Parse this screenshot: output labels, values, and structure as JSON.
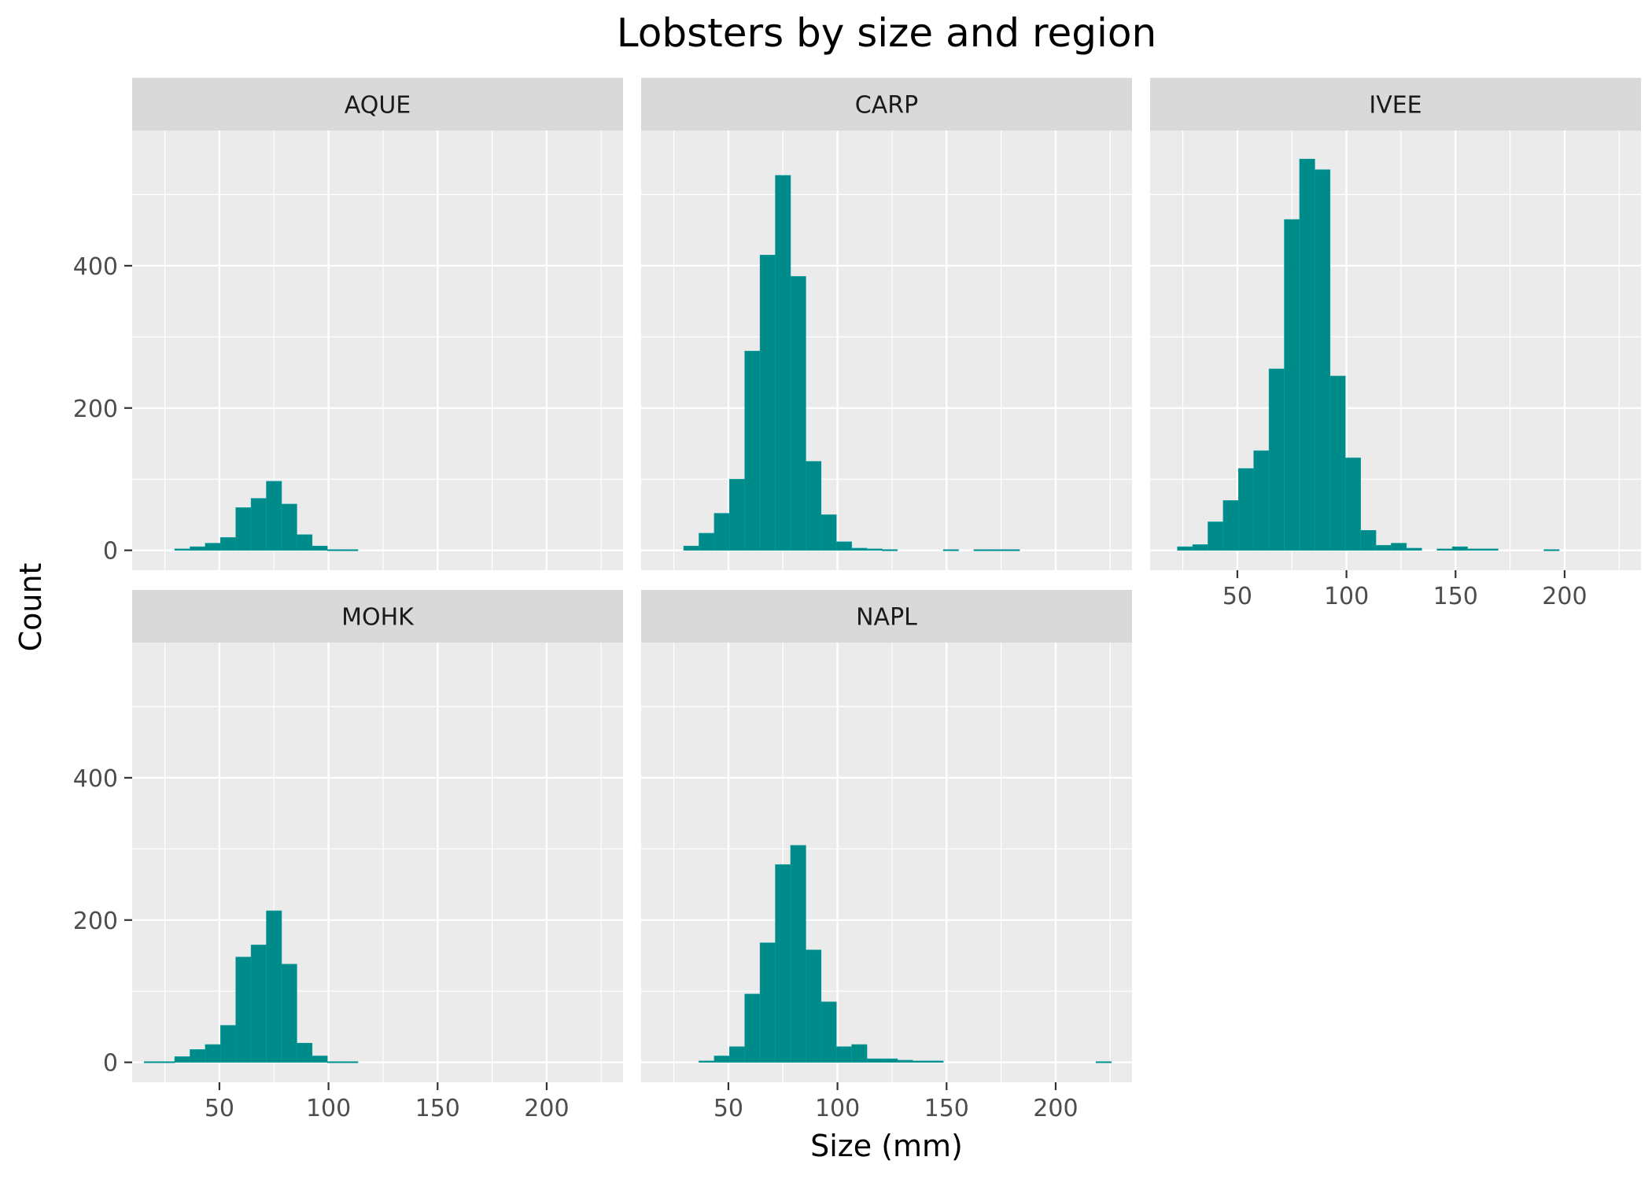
{
  "chart_data": {
    "type": "bar",
    "subtype": "histogram-faceted",
    "title": "Lobsters by size and region",
    "xlabel": "Size (mm)",
    "ylabel": "Count",
    "xlim": [
      10,
      235
    ],
    "ylim": [
      -28,
      590
    ],
    "x_ticks": [
      50,
      100,
      150,
      200
    ],
    "y_ticks": [
      0,
      200,
      400
    ],
    "bin_width": 7,
    "colors": {
      "bar": "#008b8b",
      "panel": "#ebebeb",
      "strip": "#d9d9d9",
      "grid": "#ffffff"
    },
    "facets": [
      {
        "name": "AQUE",
        "bins": [
          [
            33,
            2
          ],
          [
            40,
            5
          ],
          [
            47,
            10
          ],
          [
            54,
            18
          ],
          [
            61,
            60
          ],
          [
            68,
            73
          ],
          [
            75,
            97
          ],
          [
            82,
            65
          ],
          [
            89,
            22
          ],
          [
            96,
            6
          ],
          [
            103,
            1
          ],
          [
            110,
            1
          ]
        ]
      },
      {
        "name": "CARP",
        "bins": [
          [
            33,
            6
          ],
          [
            40,
            24
          ],
          [
            47,
            52
          ],
          [
            54,
            100
          ],
          [
            61,
            280
          ],
          [
            68,
            415
          ],
          [
            75,
            527
          ],
          [
            82,
            385
          ],
          [
            89,
            125
          ],
          [
            96,
            50
          ],
          [
            103,
            12
          ],
          [
            110,
            3
          ],
          [
            117,
            2
          ],
          [
            124,
            1
          ],
          [
            152,
            1
          ],
          [
            166,
            1
          ],
          [
            173,
            1
          ],
          [
            180,
            1
          ]
        ]
      },
      {
        "name": "IVEE",
        "bins": [
          [
            26,
            5
          ],
          [
            33,
            8
          ],
          [
            40,
            40
          ],
          [
            47,
            70
          ],
          [
            54,
            115
          ],
          [
            61,
            140
          ],
          [
            68,
            255
          ],
          [
            75,
            465
          ],
          [
            82,
            550
          ],
          [
            89,
            535
          ],
          [
            96,
            245
          ],
          [
            103,
            130
          ],
          [
            110,
            28
          ],
          [
            117,
            7
          ],
          [
            124,
            10
          ],
          [
            131,
            3
          ],
          [
            145,
            2
          ],
          [
            152,
            5
          ],
          [
            159,
            2
          ],
          [
            166,
            2
          ],
          [
            194,
            1
          ]
        ]
      },
      {
        "name": "MOHK",
        "bins": [
          [
            19,
            1
          ],
          [
            26,
            1
          ],
          [
            33,
            8
          ],
          [
            40,
            18
          ],
          [
            47,
            25
          ],
          [
            54,
            52
          ],
          [
            61,
            148
          ],
          [
            68,
            165
          ],
          [
            75,
            213
          ],
          [
            82,
            138
          ],
          [
            89,
            27
          ],
          [
            96,
            9
          ],
          [
            103,
            1
          ],
          [
            110,
            1
          ]
        ]
      },
      {
        "name": "NAPL",
        "bins": [
          [
            40,
            2
          ],
          [
            47,
            9
          ],
          [
            54,
            22
          ],
          [
            61,
            96
          ],
          [
            68,
            168
          ],
          [
            75,
            278
          ],
          [
            82,
            305
          ],
          [
            89,
            158
          ],
          [
            96,
            85
          ],
          [
            103,
            22
          ],
          [
            110,
            25
          ],
          [
            117,
            5
          ],
          [
            124,
            5
          ],
          [
            131,
            3
          ],
          [
            138,
            2
          ],
          [
            145,
            2
          ],
          [
            222,
            1
          ]
        ]
      }
    ]
  }
}
